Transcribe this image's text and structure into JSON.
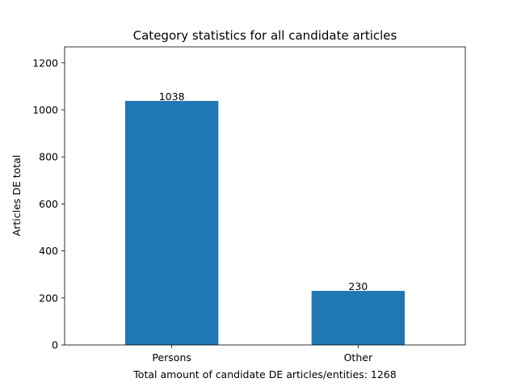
{
  "chart_data": {
    "type": "bar",
    "title": "Category statistics for all candidate articles",
    "xlabel": "Total amount of candidate DE articles/entities: 1268",
    "ylabel": "Articles DE total",
    "categories": [
      "Persons",
      "Other"
    ],
    "values": [
      1038,
      230
    ],
    "data_labels": [
      "1038",
      "230"
    ],
    "ylim": [
      0,
      1268
    ],
    "yticks": [
      0,
      200,
      400,
      600,
      800,
      1000,
      1200
    ],
    "grid": false,
    "legend": "none",
    "bar_color": "#1f77b4"
  }
}
